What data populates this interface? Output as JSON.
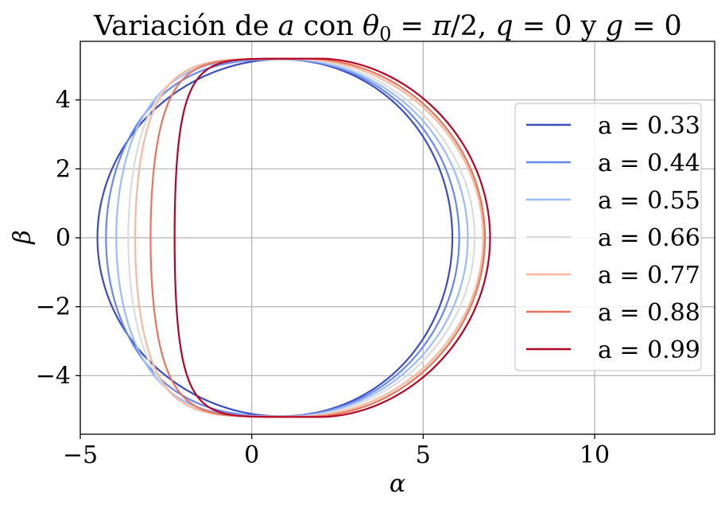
{
  "chart_data": {
    "type": "line",
    "title": "Variación de a con θ₀ = π/2, q = 0 y g = 0",
    "xlabel": "α",
    "ylabel": "β",
    "xlim": [
      -5,
      13.5
    ],
    "ylim": [
      -5.7,
      5.7
    ],
    "xticks": [
      -5,
      0,
      5,
      10
    ],
    "yticks": [
      -4,
      -2,
      0,
      2,
      4
    ],
    "xtick_labels": [
      "−5",
      "0",
      "5",
      "10"
    ],
    "ytick_labels": [
      "−4",
      "−2",
      "0",
      "2",
      "4"
    ],
    "grid": true,
    "legend_position": "right",
    "series": [
      {
        "name": "a = 0.33",
        "color": "#3b4cc0",
        "x_min": -4.5,
        "x_max": 5.85,
        "beta_max": 5.18,
        "x_top": 0.85
      },
      {
        "name": "a = 0.44",
        "color": "#6788ee",
        "x_min": -4.25,
        "x_max": 6.05,
        "beta_max": 5.18,
        "x_top": 0.95
      },
      {
        "name": "a = 0.55",
        "color": "#9abbff",
        "x_min": -3.95,
        "x_max": 6.3,
        "beta_max": 5.18,
        "x_top": 1.05
      },
      {
        "name": "a = 0.66",
        "color": "#dddcdc",
        "x_min": -3.6,
        "x_max": 6.5,
        "beta_max": 5.19,
        "x_top": 1.2
      },
      {
        "name": "a = 0.77",
        "color": "#f7b89c",
        "x_min": -3.4,
        "x_max": 6.75,
        "beta_max": 5.19,
        "x_top": 1.4
      },
      {
        "name": "a = 0.88",
        "color": "#e7745b",
        "x_min": -2.95,
        "x_max": 6.8,
        "beta_max": 5.19,
        "x_top": 1.65
      },
      {
        "name": "a = 0.99",
        "color": "#b40426",
        "x_min": -2.25,
        "x_max": 6.95,
        "beta_max": 5.2,
        "x_top": 1.95
      }
    ]
  }
}
